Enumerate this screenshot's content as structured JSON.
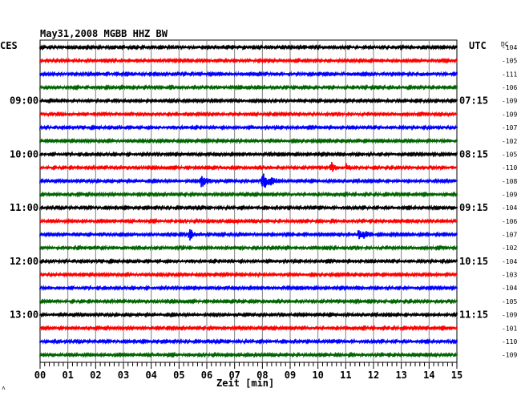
{
  "header": {
    "station": "May31,2008   MGBB HHZ BW",
    "left_label": "CES",
    "right_label": "UTC",
    "dc_label": "DC",
    "corner_mark": "˄"
  },
  "chart_data": {
    "type": "line",
    "title": "May31,2008   MGBB HHZ BW",
    "xlabel": "Zeit [min]",
    "xlim": [
      0,
      15
    ],
    "x_ticks": [
      "00",
      "01",
      "02",
      "03",
      "04",
      "05",
      "06",
      "07",
      "08",
      "09",
      "10",
      "11",
      "12",
      "13",
      "14",
      "15"
    ],
    "trace_colors": [
      "#000000",
      "#ff0000",
      "#0000ff",
      "#006400"
    ],
    "left_time_labels": [
      {
        "trace": 4,
        "text": "09:00"
      },
      {
        "trace": 8,
        "text": "10:00"
      },
      {
        "trace": 12,
        "text": "11:00"
      },
      {
        "trace": 16,
        "text": "12:00"
      },
      {
        "trace": 20,
        "text": "13:00"
      }
    ],
    "right_time_labels": [
      {
        "trace": 4,
        "text": "07:15"
      },
      {
        "trace": 8,
        "text": "08:15"
      },
      {
        "trace": 12,
        "text": "09:15"
      },
      {
        "trace": 16,
        "text": "10:15"
      },
      {
        "trace": 20,
        "text": "11:15"
      }
    ],
    "dc_values": [
      "-104",
      "-105",
      "-111",
      "-106",
      "-109",
      "-109",
      "-107",
      "-102",
      "-105",
      "-110",
      "-108",
      "-109",
      "-104",
      "-106",
      "-107",
      "-102",
      "-104",
      "-103",
      "-104",
      "-105",
      "-109",
      "-101",
      "-110",
      "-109"
    ],
    "events": [
      {
        "trace": 9,
        "start_min": 6.4,
        "end_min": 7.4,
        "amp": 3
      },
      {
        "trace": 9,
        "start_min": 10.4,
        "end_min": 10.95,
        "amp": 9
      },
      {
        "trace": 9,
        "start_min": 10.95,
        "end_min": 11.5,
        "amp": 6
      },
      {
        "trace": 9,
        "start_min": 14.8,
        "end_min": 14.9,
        "amp": 4
      },
      {
        "trace": 10,
        "start_min": 5.7,
        "end_min": 6.5,
        "amp": 9
      },
      {
        "trace": 10,
        "start_min": 7.9,
        "end_min": 9.0,
        "amp": 12
      },
      {
        "trace": 13,
        "start_min": 6.8,
        "end_min": 8.0,
        "amp": 3
      },
      {
        "trace": 14,
        "start_min": 5.3,
        "end_min": 5.9,
        "amp": 9
      },
      {
        "trace": 14,
        "start_min": 11.4,
        "end_min": 12.2,
        "amp": 11
      },
      {
        "trace": 20,
        "start_min": 11.2,
        "end_min": 11.4,
        "amp": 3
      },
      {
        "trace": 21,
        "start_min": 4.7,
        "end_min": 5.0,
        "amp": 2
      },
      {
        "trace": 21,
        "start_min": 7.1,
        "end_min": 7.5,
        "amp": 4
      },
      {
        "trace": 21,
        "start_min": 9.5,
        "end_min": 9.7,
        "amp": 2
      },
      {
        "trace": 23,
        "start_min": 5.3,
        "end_min": 5.9,
        "amp": 3
      }
    ]
  }
}
